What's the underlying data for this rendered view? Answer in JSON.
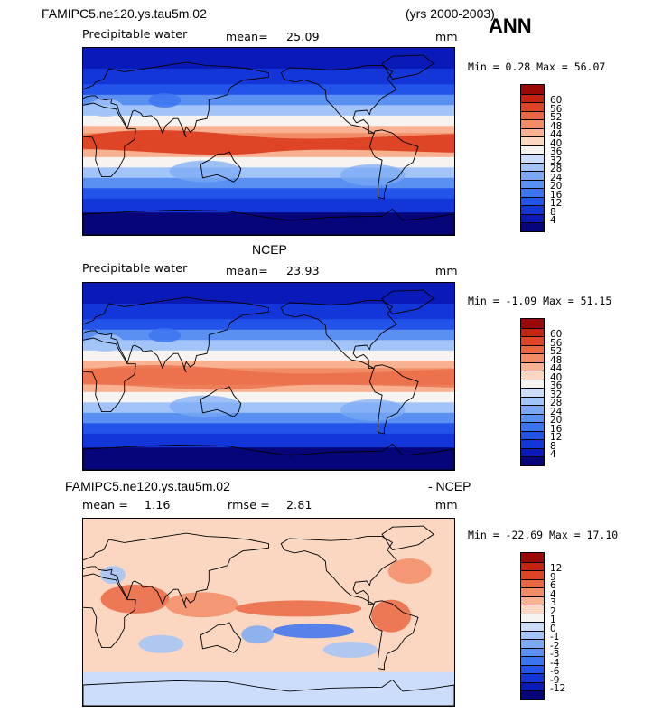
{
  "title_left": "FAMIPC5.ne120.ys.tau5m.02",
  "years": "(yrs 2000-2003)",
  "season": "ANN",
  "panels": [
    {
      "heading": "",
      "var_label": "Precipitable water",
      "stat1_label": "mean=",
      "stat1_value": "25.09",
      "stat2_label": "",
      "stat2_value": "",
      "units": "mm",
      "minmax": "Min =   0.28 Max =  56.07",
      "cbar_colors": [
        "#06057a",
        "#0a1ab8",
        "#1336d9",
        "#2354ea",
        "#3b73f0",
        "#5990f2",
        "#7baaf5",
        "#a2c4f8",
        "#cbddfa",
        "#f6f3f0",
        "#fbd7c2",
        "#f8b191",
        "#f28c66",
        "#ea6743",
        "#de4426",
        "#c42412",
        "#9a0907"
      ],
      "cbar_labels": [
        "4",
        "8",
        "12",
        "16",
        "20",
        "24",
        "28",
        "32",
        "36",
        "40",
        "44",
        "48",
        "52",
        "56",
        "60"
      ]
    },
    {
      "heading": "NCEP",
      "var_label": "Precipitable water",
      "stat1_label": "mean=",
      "stat1_value": "23.93",
      "stat2_label": "",
      "stat2_value": "",
      "units": "mm",
      "minmax": "Min =  -1.09 Max =  51.15",
      "cbar_colors": [
        "#06057a",
        "#0a1ab8",
        "#1336d9",
        "#2354ea",
        "#3b73f0",
        "#5990f2",
        "#7baaf5",
        "#a2c4f8",
        "#cbddfa",
        "#f6f3f0",
        "#fbd7c2",
        "#f8b191",
        "#f28c66",
        "#ea6743",
        "#de4426",
        "#c42412",
        "#9a0907"
      ],
      "cbar_labels": [
        "4",
        "8",
        "12",
        "16",
        "20",
        "24",
        "28",
        "32",
        "36",
        "40",
        "44",
        "48",
        "52",
        "56",
        "60"
      ]
    },
    {
      "heading": "FAMIPC5.ne120.ys.tau5m.02",
      "heading_right": "- NCEP",
      "var_label": "",
      "stat1_label": "mean =",
      "stat1_value": "1.16",
      "stat2_label": "rmse =",
      "stat2_value": "2.81",
      "units": "mm",
      "minmax": "Min = -22.69 Max =  17.10",
      "cbar_colors": [
        "#06057a",
        "#0a1ab8",
        "#1336d9",
        "#2354ea",
        "#3b73f0",
        "#5990f2",
        "#7baaf5",
        "#a2c4f8",
        "#cbddfa",
        "#f6f3f0",
        "#fbd7c2",
        "#f8b191",
        "#f28c66",
        "#ea6743",
        "#de4426",
        "#c42412",
        "#9a0907"
      ],
      "cbar_labels": [
        "-12",
        "-9",
        "-6",
        "-4",
        "-3",
        "-2",
        "-1",
        "0",
        "1",
        "2",
        "3",
        "4",
        "6",
        "9",
        "12"
      ]
    }
  ],
  "chart_data": [
    {
      "type": "heatmap",
      "title": "Precipitable water",
      "units": "mm",
      "mean": 25.09,
      "min": 0.28,
      "max": 56.07,
      "levels": [
        4,
        8,
        12,
        16,
        20,
        24,
        28,
        32,
        36,
        40,
        44,
        48,
        52,
        56,
        60
      ]
    },
    {
      "type": "heatmap",
      "title": "NCEP",
      "units": "mm",
      "mean": 23.93,
      "min": -1.09,
      "max": 51.15,
      "levels": [
        4,
        8,
        12,
        16,
        20,
        24,
        28,
        32,
        36,
        40,
        44,
        48,
        52,
        56,
        60
      ]
    },
    {
      "type": "heatmap",
      "title": "FAMIPC5.ne120.ys.tau5m.02 - NCEP",
      "units": "mm",
      "mean": 1.16,
      "rmse": 2.81,
      "min": -22.69,
      "max": 17.1,
      "levels": [
        -12,
        -9,
        -6,
        -4,
        -3,
        -2,
        -1,
        0,
        1,
        2,
        3,
        4,
        6,
        9,
        12
      ]
    }
  ]
}
